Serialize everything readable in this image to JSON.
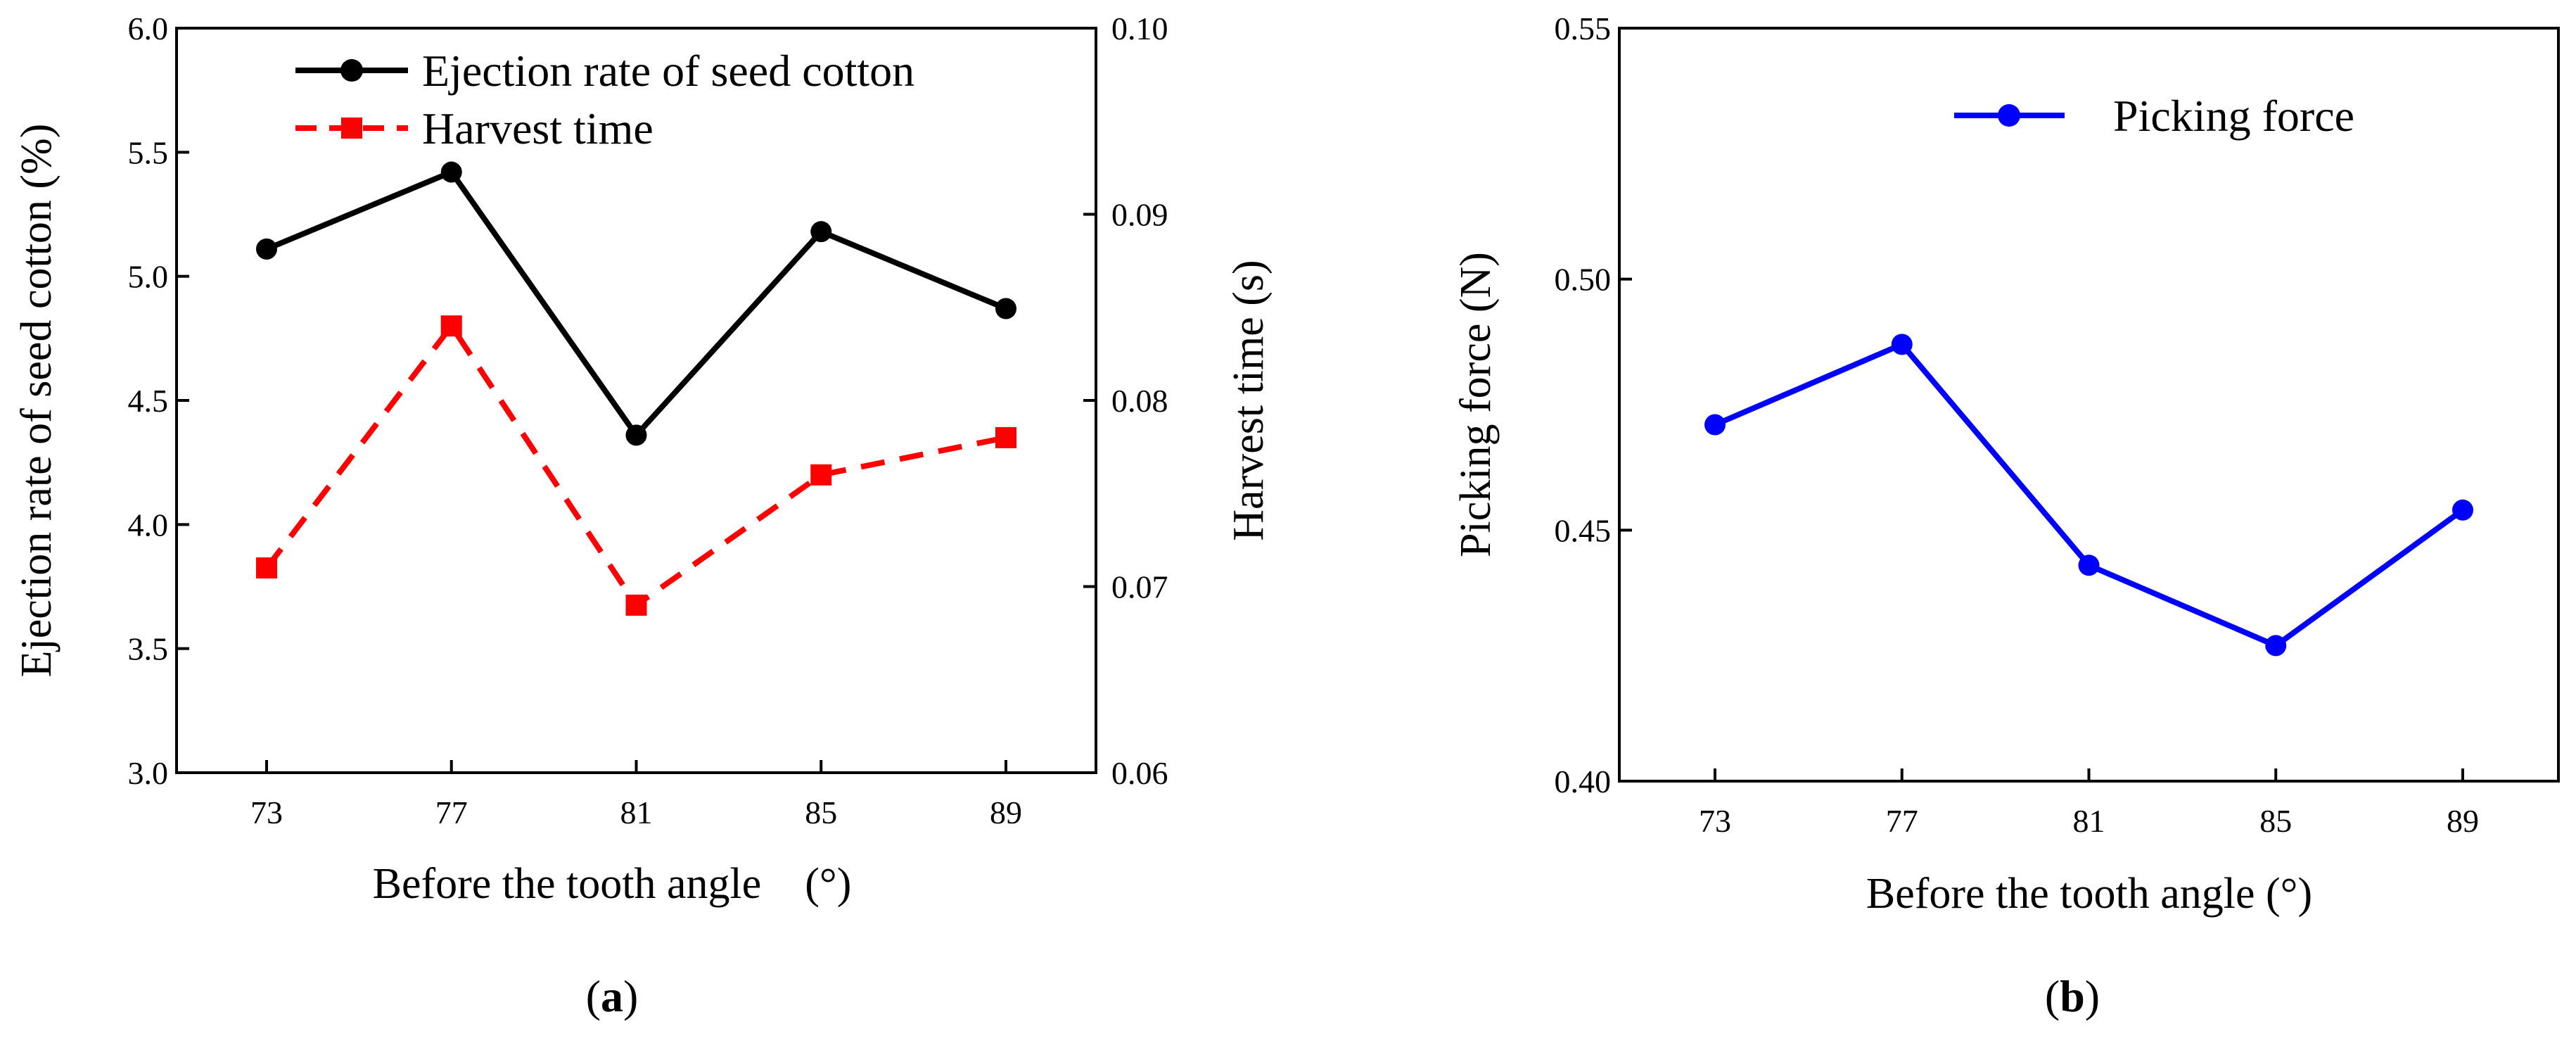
{
  "chart_data": [
    {
      "type": "line",
      "panel_label": {
        "open": "(",
        "letter": "a",
        "close": ")"
      },
      "xlabel": "Before the tooth angle　(°)",
      "categories": [
        "73",
        "77",
        "81",
        "85",
        "89"
      ],
      "left_axis": {
        "label": "Ejection rate of seed cotton (%)",
        "ylim": [
          3.0,
          6.0
        ],
        "ticks": [
          "3.0",
          "3.5",
          "4.0",
          "4.5",
          "5.0",
          "5.5",
          "6.0"
        ]
      },
      "right_axis": {
        "label": "Harvest time (s)",
        "ylim": [
          0.06,
          0.1
        ],
        "ticks": [
          "0.06",
          "0.07",
          "0.08",
          "0.09",
          "0.10"
        ]
      },
      "series": [
        {
          "name": "Ejection rate of seed cotton",
          "axis": "left",
          "color": "#000000",
          "style": "solid",
          "marker": "circle",
          "values": [
            5.11,
            5.42,
            4.36,
            5.18,
            4.87
          ]
        },
        {
          "name": "Harvest time",
          "axis": "right",
          "color": "#ff0000",
          "style": "dashed",
          "marker": "square",
          "values": [
            0.071,
            0.084,
            0.069,
            0.076,
            0.078
          ]
        }
      ],
      "legend_position": "top"
    },
    {
      "type": "line",
      "panel_label": {
        "open": "(",
        "letter": "b",
        "close": ")"
      },
      "xlabel": "Before the tooth angle (°)",
      "categories": [
        "73",
        "77",
        "81",
        "85",
        "89"
      ],
      "left_axis": {
        "label": "Picking force (N)",
        "ylim": [
          0.4,
          0.55
        ],
        "ticks": [
          "0.40",
          "0.45",
          "0.50",
          "0.55"
        ]
      },
      "series": [
        {
          "name": "Picking force",
          "axis": "left",
          "color": "#0000ff",
          "style": "solid",
          "marker": "circle",
          "values": [
            0.471,
            0.487,
            0.443,
            0.427,
            0.454
          ]
        }
      ],
      "legend_position": "top-right"
    }
  ]
}
